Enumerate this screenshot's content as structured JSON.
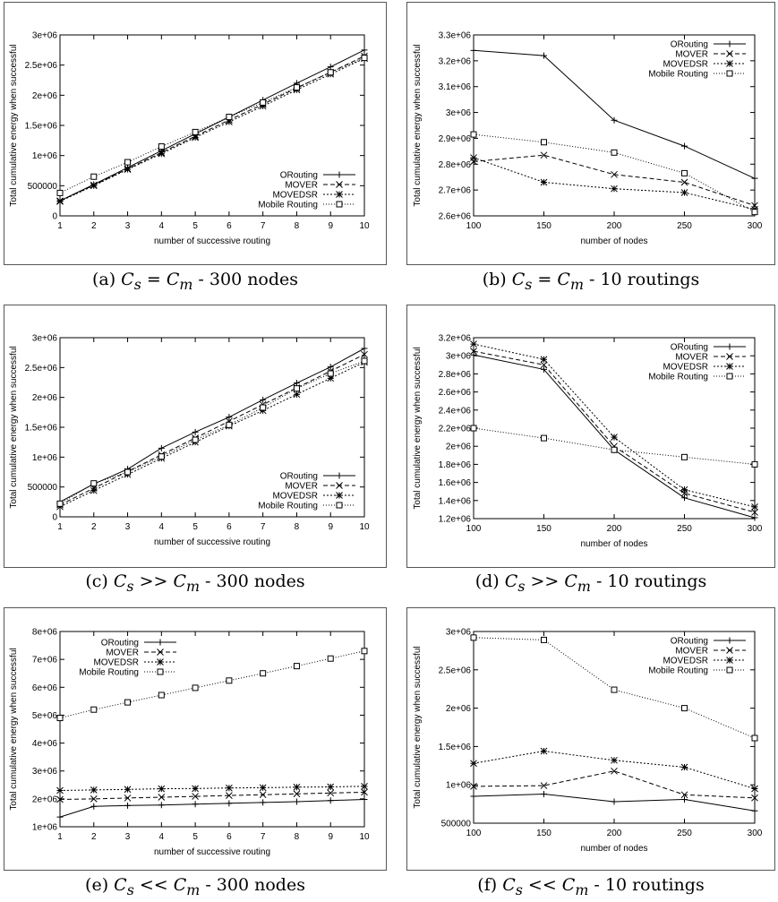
{
  "chart_data": [
    {
      "id": "a",
      "type": "line",
      "caption": "(a) Cs = Cm - 300 nodes",
      "xlabel": "number of successive routing",
      "ylabel": "Total cumulative energy when successful",
      "x": [
        1,
        2,
        3,
        4,
        5,
        6,
        7,
        8,
        9,
        10
      ],
      "xticks": [
        "1",
        "2",
        "3",
        "4",
        "5",
        "6",
        "7",
        "8",
        "9",
        "10"
      ],
      "ylim": [
        0,
        3000000
      ],
      "yticks": [
        0,
        500000,
        1000000,
        1500000,
        2000000,
        2500000,
        3000000
      ],
      "yticklabels": [
        "0",
        "500000",
        "1e+06",
        "1.5e+06",
        "2e+06",
        "2.5e+06",
        "3e+06"
      ],
      "legend": "bottom-right",
      "series": [
        {
          "name": "ORouting",
          "marker": "plus",
          "dash": "",
          "values": [
            250000,
            520000,
            800000,
            1080000,
            1360000,
            1640000,
            1920000,
            2200000,
            2470000,
            2750000
          ]
        },
        {
          "name": "MOVER",
          "marker": "cross",
          "dash": "5,3",
          "values": [
            250000,
            510000,
            780000,
            1050000,
            1320000,
            1590000,
            1850000,
            2120000,
            2380000,
            2650000
          ]
        },
        {
          "name": "MOVEDSR",
          "marker": "star",
          "dash": "2,2",
          "values": [
            240000,
            500000,
            770000,
            1030000,
            1300000,
            1560000,
            1820000,
            2090000,
            2350000,
            2610000
          ]
        },
        {
          "name": "Mobile Routing",
          "marker": "square",
          "dash": "1,2",
          "values": [
            380000,
            650000,
            890000,
            1150000,
            1390000,
            1640000,
            1880000,
            2130000,
            2380000,
            2620000
          ]
        }
      ]
    },
    {
      "id": "b",
      "type": "line",
      "caption": "(b) Cs = Cm - 10 routings",
      "xlabel": "number of nodes",
      "ylabel": "Total cumulative energy when successful",
      "x": [
        100,
        150,
        200,
        250,
        300
      ],
      "xticks": [
        "100",
        "150",
        "200",
        "250",
        "300"
      ],
      "ylim": [
        2600000,
        3300000
      ],
      "yticks": [
        2600000,
        2700000,
        2800000,
        2900000,
        3000000,
        3100000,
        3200000,
        3300000
      ],
      "yticklabels": [
        "2.6e+06",
        "2.7e+06",
        "2.8e+06",
        "2.9e+06",
        "3e+06",
        "3.1e+06",
        "3.2e+06",
        "3.3e+06"
      ],
      "legend": "top-right",
      "series": [
        {
          "name": "ORouting",
          "marker": "plus",
          "dash": "",
          "values": [
            3240000,
            3220000,
            2970000,
            2870000,
            2745000
          ]
        },
        {
          "name": "MOVER",
          "marker": "cross",
          "dash": "5,3",
          "values": [
            2810000,
            2835000,
            2760000,
            2730000,
            2640000
          ]
        },
        {
          "name": "MOVEDSR",
          "marker": "star",
          "dash": "2,2",
          "values": [
            2825000,
            2730000,
            2705000,
            2690000,
            2625000
          ]
        },
        {
          "name": "Mobile Routing",
          "marker": "square",
          "dash": "1,2",
          "values": [
            2915000,
            2885000,
            2845000,
            2765000,
            2615000
          ]
        }
      ]
    },
    {
      "id": "c",
      "type": "line",
      "caption": "(c) Cs >> Cm - 300 nodes",
      "xlabel": "number of successive routing",
      "ylabel": "Total cumulative energy when successful",
      "x": [
        1,
        2,
        3,
        4,
        5,
        6,
        7,
        8,
        9,
        10
      ],
      "xticks": [
        "1",
        "2",
        "3",
        "4",
        "5",
        "6",
        "7",
        "8",
        "9",
        "10"
      ],
      "ylim": [
        0,
        3000000
      ],
      "yticks": [
        0,
        500000,
        1000000,
        1500000,
        2000000,
        2500000,
        3000000
      ],
      "yticklabels": [
        "0",
        "500000",
        "1e+06",
        "1.5e+06",
        "2e+06",
        "2.5e+06",
        "3e+06"
      ],
      "legend": "bottom-right",
      "series": [
        {
          "name": "ORouting",
          "marker": "plus",
          "dash": "",
          "values": [
            250000,
            550000,
            800000,
            1150000,
            1420000,
            1670000,
            1960000,
            2240000,
            2510000,
            2820000
          ]
        },
        {
          "name": "MOVER",
          "marker": "cross",
          "dash": "5,3",
          "values": [
            200000,
            480000,
            760000,
            1040000,
            1320000,
            1600000,
            1880000,
            2160000,
            2440000,
            2720000
          ]
        },
        {
          "name": "MOVEDSR",
          "marker": "star",
          "dash": "2,2",
          "values": [
            170000,
            440000,
            710000,
            980000,
            1250000,
            1520000,
            1780000,
            2050000,
            2320000,
            2590000
          ]
        },
        {
          "name": "Mobile Routing",
          "marker": "square",
          "dash": "1,2",
          "values": [
            220000,
            560000,
            750000,
            1010000,
            1290000,
            1540000,
            1830000,
            2150000,
            2400000,
            2610000
          ]
        }
      ]
    },
    {
      "id": "d",
      "type": "line",
      "caption": "(d) Cs >> Cm - 10 routings",
      "xlabel": "number of nodes",
      "ylabel": "Total cumulative energy when successful",
      "x": [
        100,
        150,
        200,
        250,
        300
      ],
      "xticks": [
        "100",
        "150",
        "200",
        "250",
        "300"
      ],
      "ylim": [
        1200000,
        3200000
      ],
      "yticks": [
        1200000,
        1400000,
        1600000,
        1800000,
        2000000,
        2200000,
        2400000,
        2600000,
        2800000,
        3000000,
        3200000
      ],
      "yticklabels": [
        "1.2e+06",
        "1.4e+06",
        "1.6e+06",
        "1.8e+06",
        "2e+06",
        "2.2e+06",
        "2.4e+06",
        "2.6e+06",
        "2.8e+06",
        "3e+06",
        "3.2e+06"
      ],
      "legend": "top-right",
      "series": [
        {
          "name": "ORouting",
          "marker": "plus",
          "dash": "",
          "values": [
            3010000,
            2850000,
            1960000,
            1430000,
            1210000
          ]
        },
        {
          "name": "MOVER",
          "marker": "cross",
          "dash": "5,3",
          "values": [
            3050000,
            2900000,
            2000000,
            1480000,
            1270000
          ]
        },
        {
          "name": "MOVEDSR",
          "marker": "star",
          "dash": "2,2",
          "values": [
            3130000,
            2960000,
            2100000,
            1520000,
            1330000
          ]
        },
        {
          "name": "Mobile Routing",
          "marker": "square",
          "dash": "1,2",
          "values": [
            2200000,
            2090000,
            1960000,
            1880000,
            1800000
          ]
        }
      ]
    },
    {
      "id": "e",
      "type": "line",
      "caption": "(e) Cs << Cm - 300 nodes",
      "xlabel": "number of successive routing",
      "ylabel": "Total cumulative energy when successful",
      "x": [
        1,
        2,
        3,
        4,
        5,
        6,
        7,
        8,
        9,
        10
      ],
      "xticks": [
        "1",
        "2",
        "3",
        "4",
        "5",
        "6",
        "7",
        "8",
        "9",
        "10"
      ],
      "ylim": [
        1000000,
        8000000
      ],
      "yticks": [
        1000000,
        2000000,
        3000000,
        4000000,
        5000000,
        6000000,
        7000000,
        8000000
      ],
      "yticklabels": [
        "1e+06",
        "2e+06",
        "3e+06",
        "4e+06",
        "5e+06",
        "6e+06",
        "7e+06",
        "8e+06"
      ],
      "legend": "top-left",
      "series": [
        {
          "name": "ORouting",
          "marker": "plus",
          "dash": "",
          "values": [
            1350000,
            1730000,
            1760000,
            1780000,
            1810000,
            1840000,
            1870000,
            1900000,
            1940000,
            1980000
          ]
        },
        {
          "name": "MOVER",
          "marker": "cross",
          "dash": "5,3",
          "values": [
            1980000,
            2000000,
            2030000,
            2060000,
            2090000,
            2120000,
            2150000,
            2180000,
            2210000,
            2240000
          ]
        },
        {
          "name": "MOVEDSR",
          "marker": "star",
          "dash": "2,2",
          "values": [
            2300000,
            2320000,
            2340000,
            2360000,
            2370000,
            2390000,
            2400000,
            2420000,
            2430000,
            2450000
          ]
        },
        {
          "name": "Mobile Routing",
          "marker": "square",
          "dash": "1,2",
          "values": [
            4900000,
            5200000,
            5460000,
            5720000,
            5980000,
            6240000,
            6500000,
            6760000,
            7030000,
            7300000
          ]
        }
      ]
    },
    {
      "id": "f",
      "type": "line",
      "caption": "(f) Cs << Cm - 10 routings",
      "xlabel": "number of nodes",
      "ylabel": "Total cumulative energy when successful",
      "x": [
        100,
        150,
        200,
        250,
        300
      ],
      "xticks": [
        "100",
        "150",
        "200",
        "250",
        "300"
      ],
      "ylim": [
        500000,
        3000000
      ],
      "yticks": [
        500000,
        1000000,
        1500000,
        2000000,
        2500000,
        3000000
      ],
      "yticklabels": [
        "500000",
        "1e+06",
        "1.5e+06",
        "2e+06",
        "2.5e+06",
        "3e+06"
      ],
      "legend": "top-right",
      "series": [
        {
          "name": "ORouting",
          "marker": "plus",
          "dash": "",
          "values": [
            850000,
            880000,
            780000,
            810000,
            660000
          ]
        },
        {
          "name": "MOVER",
          "marker": "cross",
          "dash": "5,3",
          "values": [
            980000,
            990000,
            1180000,
            870000,
            830000
          ]
        },
        {
          "name": "MOVEDSR",
          "marker": "star",
          "dash": "2,2",
          "values": [
            1280000,
            1440000,
            1320000,
            1230000,
            950000
          ]
        },
        {
          "name": "Mobile Routing",
          "marker": "square",
          "dash": "1,2",
          "values": [
            2920000,
            2890000,
            2240000,
            2000000,
            1610000
          ]
        }
      ]
    }
  ]
}
